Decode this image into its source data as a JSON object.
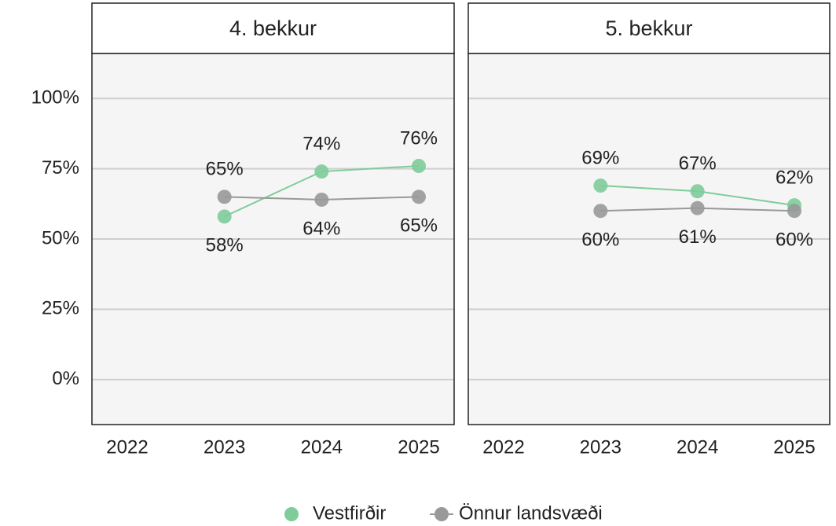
{
  "chart_data": [
    {
      "type": "line",
      "title": "4. bekkur",
      "categories": [
        "2022",
        "2023",
        "2024",
        "2025"
      ],
      "ylim": [
        -16,
        116
      ],
      "yticks": [
        {
          "value": 0,
          "label": "0%"
        },
        {
          "value": 25,
          "label": "25%"
        },
        {
          "value": 50,
          "label": "50%"
        },
        {
          "value": 75,
          "label": "75%"
        },
        {
          "value": 100,
          "label": "100%"
        }
      ],
      "grid": true,
      "series": [
        {
          "name": "Vestfirðir",
          "color": "#7fcc9a",
          "values": [
            null,
            58,
            74,
            76
          ],
          "value_labels": [
            null,
            "58%",
            "74%",
            "76%"
          ]
        },
        {
          "name": "Önnur landsvæði",
          "color": "#999999",
          "values": [
            null,
            65,
            64,
            65
          ],
          "value_labels": [
            null,
            "65%",
            "64%",
            "65%"
          ]
        }
      ]
    },
    {
      "type": "line",
      "title": "5. bekkur",
      "categories": [
        "2022",
        "2023",
        "2024",
        "2025"
      ],
      "series": [
        {
          "name": "Vestfirðir",
          "color": "#7fcc9a",
          "values": [
            null,
            69,
            67,
            62
          ],
          "value_labels": [
            null,
            "69%",
            "67%",
            "62%"
          ]
        },
        {
          "name": "Önnur landsvæði",
          "color": "#999999",
          "values": [
            null,
            60,
            61,
            60
          ],
          "value_labels": [
            null,
            "60%",
            "61%",
            "60%"
          ]
        }
      ]
    }
  ]
}
